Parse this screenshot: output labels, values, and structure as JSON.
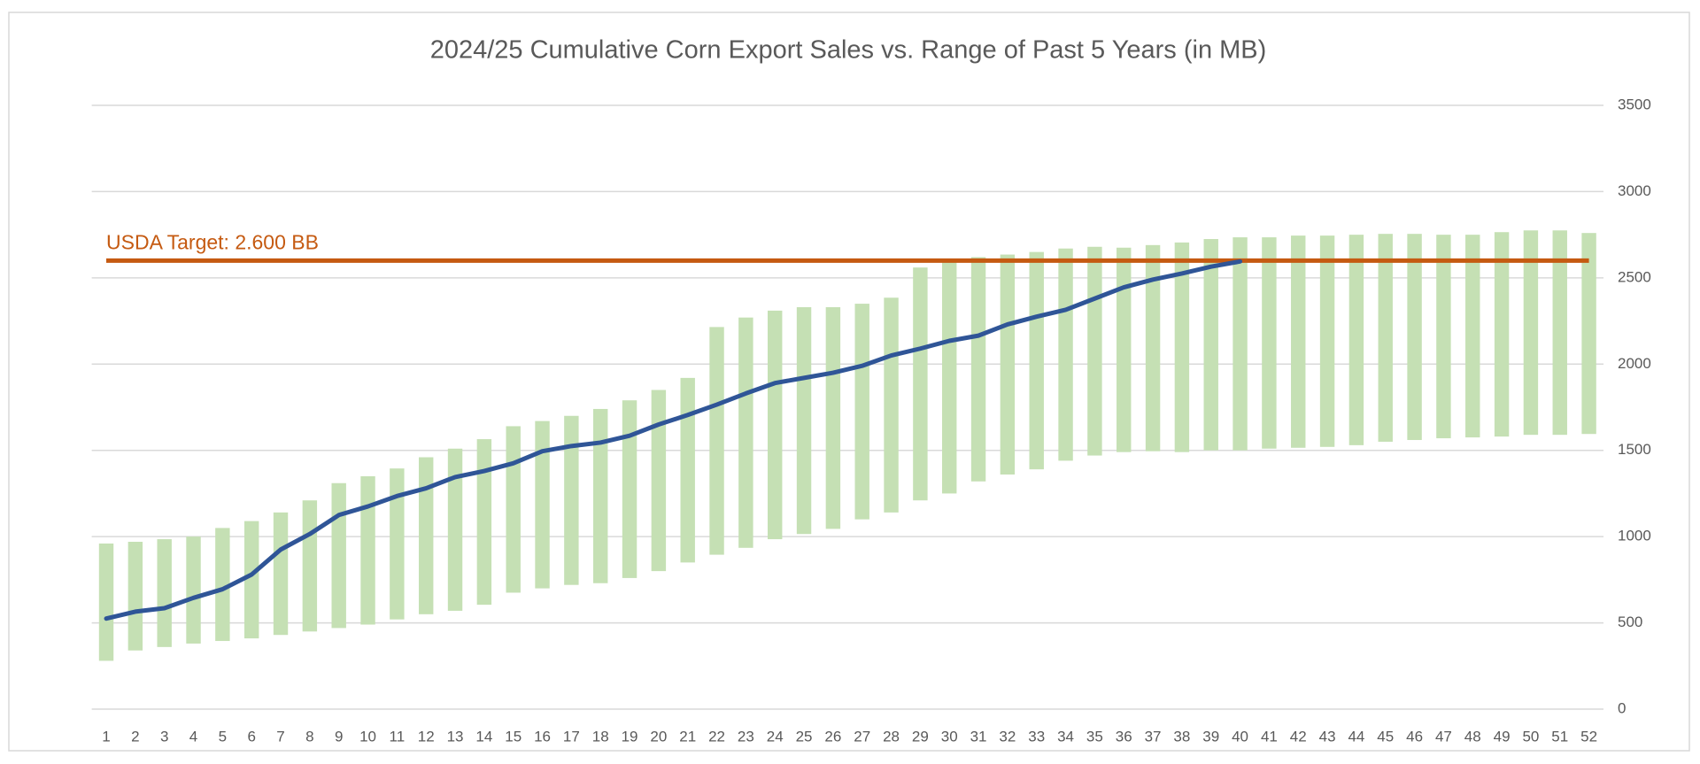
{
  "chart_data": {
    "type": "range_bar_line",
    "title": "2024/25 Cumulative Corn Export Sales vs. Range of Past 5 Years (in MB)",
    "categories": [
      1,
      2,
      3,
      4,
      5,
      6,
      7,
      8,
      9,
      10,
      11,
      12,
      13,
      14,
      15,
      16,
      17,
      18,
      19,
      20,
      21,
      22,
      23,
      24,
      25,
      26,
      27,
      28,
      29,
      30,
      31,
      32,
      33,
      34,
      35,
      36,
      37,
      38,
      39,
      40,
      41,
      42,
      43,
      44,
      45,
      46,
      47,
      48,
      49,
      50,
      51,
      52
    ],
    "range": {
      "color": "#c5e0b4",
      "low": [
        280,
        340,
        360,
        380,
        395,
        410,
        430,
        450,
        470,
        490,
        520,
        550,
        570,
        605,
        675,
        700,
        720,
        730,
        760,
        800,
        850,
        895,
        935,
        985,
        1015,
        1045,
        1100,
        1140,
        1210,
        1250,
        1320,
        1360,
        1390,
        1440,
        1470,
        1490,
        1495,
        1490,
        1500,
        1500,
        1510,
        1515,
        1520,
        1530,
        1550,
        1560,
        1570,
        1575,
        1580,
        1590,
        1590,
        1595
      ],
      "high": [
        960,
        970,
        985,
        1000,
        1050,
        1090,
        1140,
        1210,
        1310,
        1350,
        1395,
        1460,
        1510,
        1565,
        1640,
        1670,
        1700,
        1740,
        1790,
        1850,
        1920,
        2215,
        2270,
        2310,
        2330,
        2330,
        2350,
        2385,
        2560,
        2600,
        2620,
        2635,
        2650,
        2670,
        2680,
        2675,
        2690,
        2705,
        2725,
        2735,
        2735,
        2745,
        2745,
        2750,
        2755,
        2755,
        2750,
        2750,
        2765,
        2775,
        2775,
        2760
      ]
    },
    "series": [
      {
        "color": "#2f5597",
        "values": [
          525,
          565,
          585,
          645,
          695,
          780,
          925,
          1015,
          1125,
          1175,
          1235,
          1280,
          1345,
          1380,
          1425,
          1495,
          1525,
          1545,
          1585,
          1650,
          1705,
          1765,
          1830,
          1890,
          1920,
          1950,
          1990,
          2050,
          2090,
          2135,
          2165,
          2230,
          2275,
          2315,
          2380,
          2445,
          2490,
          2525,
          2565,
          2595,
          null,
          null,
          null,
          null,
          null,
          null,
          null,
          null,
          null,
          null,
          null,
          null
        ]
      }
    ],
    "target": {
      "value": 2600,
      "label": "USDA Target: 2.600 BB",
      "color": "#c55a11"
    },
    "ylim": [
      0,
      3500
    ],
    "yticks": [
      0,
      500,
      1000,
      1500,
      2000,
      2500,
      3000,
      3500
    ],
    "grid": true
  }
}
